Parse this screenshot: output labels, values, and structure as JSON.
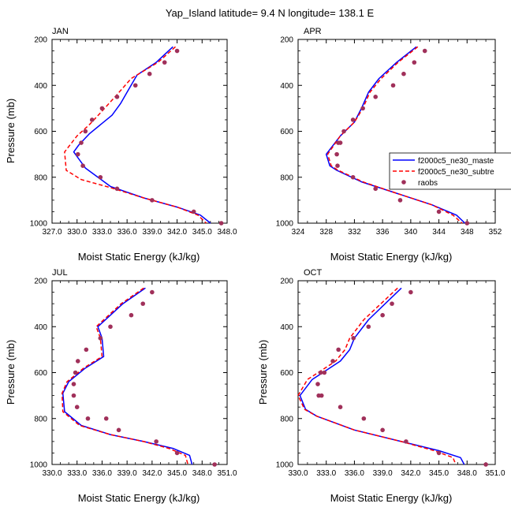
{
  "chart_data": {
    "title": "Yap_Island  latitude= 9.4 N longitude= 138.1 E",
    "type": "line",
    "legend": {
      "placement": "right of APR panel",
      "entries": [
        {
          "name": "f2000c5_ne30_maste",
          "style": "solid",
          "color": "#0000ff"
        },
        {
          "name": "f2000c5_ne30_subtre",
          "style": "dashed",
          "color": "#ff0000"
        },
        {
          "name": "raobs",
          "style": "dots",
          "color": "#a0305a"
        }
      ]
    },
    "colors": {
      "model1": "#0000ff",
      "model2": "#ff0000",
      "obs": "#a0305a"
    },
    "panels": [
      {
        "label": "JAN",
        "xlabel": "Moist Static Energy (kJ/kg)",
        "ylabel": "Pressure (mb)",
        "xlim": [
          327.0,
          348.0
        ],
        "xticks": [
          327.0,
          330.0,
          333.0,
          336.0,
          339.0,
          342.0,
          345.0,
          348.0
        ],
        "xtick_labels": [
          "327.0",
          "330.0",
          "333.0",
          "336.0",
          "339.0",
          "342.0",
          "345.0",
          "348.0"
        ],
        "ylim": [
          1000,
          200
        ],
        "yticks": [
          200,
          400,
          600,
          800,
          1000
        ],
        "ytick_labels": [
          "200",
          "400",
          "600",
          "800",
          "1000"
        ],
        "series": [
          {
            "name": "f2000c5_ne30_maste",
            "x": [
              341.5,
              339.5,
              337.2,
              336.0,
              335.2,
              334.2,
              331.5,
              330.2,
              329.6,
              331.0,
              334.0,
              338.0,
              342.0,
              344.8,
              346.0
            ],
            "y": [
              232,
              300,
              355,
              430,
              480,
              530,
              610,
              660,
              690,
              760,
              840,
              890,
              930,
              965,
              1000
            ]
          },
          {
            "name": "f2000c5_ne30_subtre",
            "x": [
              341.8,
              339.7,
              336.5,
              334.8,
              332.8,
              331.5,
              330.0,
              328.5,
              328.7,
              330.5,
              334.0,
              338.0,
              342.0,
              344.5,
              345.5
            ],
            "y": [
              232,
              300,
              370,
              440,
              520,
              570,
              620,
              690,
              770,
              810,
              845,
              890,
              930,
              965,
              1000
            ]
          },
          {
            "name": "raobs",
            "type": "points",
            "x": [
              342.0,
              340.5,
              338.7,
              337.0,
              334.8,
              333.0,
              331.8,
              331.0,
              330.5,
              330.1,
              330.7,
              332.8,
              334.8,
              339.0,
              344.0,
              347.3
            ],
            "y": [
              250,
              300,
              350,
              400,
              450,
              500,
              550,
              600,
              650,
              700,
              750,
              800,
              850,
              900,
              950,
              1000
            ]
          }
        ]
      },
      {
        "label": "APR",
        "xlabel": "Moist Static Energy (kJ/kg)",
        "ylabel": "",
        "xlim": [
          324,
          352
        ],
        "xticks": [
          324,
          328,
          332,
          336,
          340,
          344,
          348,
          352
        ],
        "xtick_labels": [
          "324",
          "328",
          "332",
          "336",
          "340",
          "344",
          "348",
          "352"
        ],
        "ylim": [
          1000,
          200
        ],
        "yticks": [
          200,
          400,
          600,
          800,
          1000
        ],
        "ytick_labels": [
          "200",
          "400",
          "600",
          "800",
          "1000"
        ],
        "series": [
          {
            "name": "f2000c5_ne30_maste",
            "x": [
              340.8,
              338.0,
              335.5,
              334.0,
              333.0,
              332.0,
              330.0,
              328.0,
              328.5,
              329.5,
              333.0,
              338.0,
              343.0,
              346.5,
              347.7
            ],
            "y": [
              232,
              300,
              370,
              430,
              500,
              560,
              620,
              700,
              750,
              770,
              820,
              870,
              920,
              965,
              1000
            ]
          },
          {
            "name": "f2000c5_ne30_subtre",
            "x": [
              341.0,
              338.2,
              335.8,
              334.2,
              333.2,
              332.0,
              330.0,
              328.2,
              328.7,
              329.7,
              333.2,
              338.0,
              343.0,
              346.0,
              347.3
            ],
            "y": [
              232,
              300,
              370,
              430,
              500,
              560,
              620,
              700,
              750,
              770,
              820,
              870,
              920,
              965,
              1000
            ]
          },
          {
            "name": "raobs",
            "type": "points",
            "x": [
              342.0,
              340.5,
              339.0,
              337.5,
              335.0,
              333.2,
              331.8,
              330.5,
              329.7,
              329.5,
              329.6,
              330.0,
              331.8,
              335.0,
              338.5,
              344.0,
              348.0
            ],
            "y": [
              250,
              300,
              350,
              400,
              450,
              500,
              550,
              600,
              650,
              700,
              750,
              650,
              800,
              850,
              900,
              950,
              1000
            ]
          }
        ]
      },
      {
        "label": "JUL",
        "xlabel": "Moist Static Energy (kJ/kg)",
        "ylabel": "Pressure (mb)",
        "xlim": [
          330.0,
          351.0
        ],
        "xticks": [
          330.0,
          333.0,
          336.0,
          339.0,
          342.0,
          345.0,
          348.0,
          351.0
        ],
        "xtick_labels": [
          "330.0",
          "333.0",
          "336.0",
          "339.0",
          "342.0",
          "345.0",
          "348.0",
          "351.0"
        ],
        "ylim": [
          1000,
          200
        ],
        "yticks": [
          200,
          400,
          600,
          800,
          1000
        ],
        "ytick_labels": [
          "200",
          "400",
          "600",
          "800",
          "1000"
        ],
        "series": [
          {
            "name": "f2000c5_ne30_maste",
            "x": [
              341.2,
              338.5,
              337.0,
              335.5,
              336.0,
              336.2,
              334.0,
              332.0,
              331.3,
              331.5,
              333.5,
              337.0,
              341.0,
              344.5,
              346.5,
              346.8
            ],
            "y": [
              232,
              300,
              350,
              400,
              450,
              530,
              580,
              640,
              690,
              770,
              830,
              870,
              900,
              930,
              960,
              1000
            ]
          },
          {
            "name": "f2000c5_ne30_subtre",
            "x": [
              341.0,
              338.3,
              336.8,
              335.3,
              335.8,
              336.0,
              333.8,
              331.8,
              331.2,
              331.3,
              333.3,
              337.0,
              341.0,
              344.0,
              346.0,
              346.3
            ],
            "y": [
              232,
              300,
              350,
              400,
              450,
              530,
              580,
              640,
              690,
              770,
              830,
              870,
              900,
              930,
              960,
              1000
            ]
          },
          {
            "name": "raobs",
            "type": "points",
            "x": [
              342.0,
              340.9,
              339.5,
              337.0,
              335.8,
              334.1,
              333.1,
              332.8,
              332.6,
              332.6,
              333.0,
              334.3,
              336.5,
              338.0,
              342.5,
              345.0,
              349.5
            ],
            "y": [
              250,
              300,
              350,
              400,
              450,
              500,
              550,
              600,
              650,
              700,
              750,
              800,
              800,
              850,
              900,
              950,
              1000
            ]
          }
        ]
      },
      {
        "label": "OCT",
        "xlabel": "Moist Static Energy (kJ/kg)",
        "ylabel": "Pressure (mb)",
        "xlim": [
          330.0,
          351.0
        ],
        "xticks": [
          330.0,
          333.0,
          336.0,
          339.0,
          342.0,
          345.0,
          348.0,
          351.0
        ],
        "xtick_labels": [
          "330.0",
          "333.0",
          "336.0",
          "339.0",
          "342.0",
          "345.0",
          "348.0",
          "351.0"
        ],
        "ylim": [
          1000,
          200
        ],
        "yticks": [
          200,
          400,
          600,
          800,
          1000
        ],
        "ytick_labels": [
          "200",
          "400",
          "600",
          "800",
          "1000"
        ],
        "series": [
          {
            "name": "f2000c5_ne30_maste",
            "x": [
              341.0,
              337.5,
              336.0,
              335.5,
              334.5,
              333.0,
              331.5,
              330.2,
              330.8,
              332.0,
              336.0,
              341.0,
              345.0,
              347.3,
              347.7
            ],
            "y": [
              232,
              370,
              450,
              500,
              550,
              590,
              630,
              700,
              760,
              790,
              850,
              900,
              940,
              970,
              1000
            ]
          },
          {
            "name": "f2000c5_ne30_subtre",
            "x": [
              340.6,
              337.0,
              335.5,
              335.0,
              334.0,
              332.5,
              331.0,
              330.0,
              330.7,
              332.0,
              336.0,
              341.0,
              344.5,
              346.5,
              346.8
            ],
            "y": [
              232,
              370,
              450,
              500,
              550,
              590,
              630,
              700,
              760,
              790,
              850,
              900,
              940,
              970,
              1000
            ]
          },
          {
            "name": "raobs",
            "type": "points",
            "x": [
              342.0,
              340.0,
              339.0,
              337.5,
              335.9,
              334.3,
              333.7,
              332.8,
              332.4,
              332.1,
              332.2,
              332.5,
              334.5,
              337.0,
              339.0,
              341.5,
              345.0,
              350.0
            ],
            "y": [
              250,
              300,
              350,
              400,
              450,
              500,
              550,
              600,
              600,
              650,
              700,
              700,
              750,
              800,
              850,
              900,
              950,
              1000
            ]
          }
        ]
      }
    ]
  }
}
